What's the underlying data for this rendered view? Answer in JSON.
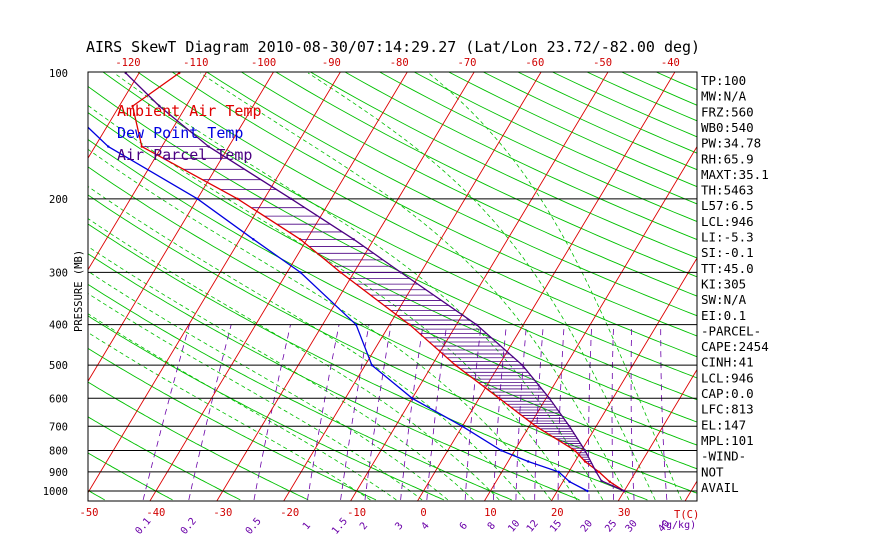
{
  "chart_data": {
    "type": "line",
    "title": "AIRS SkewT Diagram 2010-08-30/07:14:29.27 (Lat/Lon 23.72/-82.00 deg)",
    "ylabel": "PRESSURE (MB)",
    "xlabel": "T(C)",
    "mixing_ratio_label": "(g/kg)",
    "pressure_ticks": [
      100,
      200,
      300,
      400,
      500,
      600,
      700,
      800,
      900,
      1000
    ],
    "bottom_temperature_ticks": [
      -50,
      -40,
      -30,
      -20,
      -10,
      0,
      10,
      20,
      30
    ],
    "top_temperature_ticks": [
      -120,
      -110,
      -100,
      -90,
      -80,
      -70,
      -60,
      -50,
      -40
    ],
    "mixing_ratio_ticks": [
      "0.1",
      "0.2",
      "0.5",
      "1",
      "1.5",
      "2",
      "3",
      "4",
      "6",
      "8",
      "10",
      "12",
      "15",
      "20",
      "25",
      "30",
      "40"
    ],
    "series": [
      {
        "name": "Ambient Air Temp",
        "color": "#e00000",
        "pressure": [
          1000,
          950,
          900,
          850,
          800,
          700,
          600,
          500,
          400,
          300,
          250,
          200,
          150,
          120,
          100
        ],
        "values": [
          30,
          27,
          24.5,
          21.5,
          19,
          11,
          3,
          -6.5,
          -17,
          -32,
          -41,
          -54,
          -73,
          -78,
          -74
        ]
      },
      {
        "name": "Dew Point Temp",
        "color": "#0000e0",
        "pressure": [
          1000,
          950,
          900,
          850,
          800,
          700,
          600,
          500,
          400,
          300,
          250,
          200,
          150,
          120,
          100
        ],
        "values": [
          24.5,
          21,
          18.5,
          13,
          8,
          0,
          -10,
          -19,
          -25,
          -38,
          -48,
          -60,
          -78,
          -88,
          -90
        ]
      },
      {
        "name": "Air Parcel Temp",
        "color": "#4b0082",
        "pressure": [
          1000,
          946,
          900,
          800,
          700,
          600,
          500,
          400,
          300,
          250,
          200,
          150,
          120,
          100
        ],
        "values": [
          30,
          25.7,
          24.1,
          20.5,
          16,
          10.5,
          3.5,
          -7,
          -23,
          -33,
          -46,
          -63,
          -74,
          -82
        ]
      }
    ],
    "indices": [
      "TP:100",
      "MW:N/A",
      "FRZ:560",
      "WB0:540",
      "PW:34.78",
      "RH:65.9",
      "MAXT:35.1",
      "TH:5463",
      "L57:6.5",
      "LCL:946",
      "LI:-5.3",
      "SI:-0.1",
      "TT:45.0",
      "KI:305",
      "SW:N/A",
      "EI:0.1",
      "-PARCEL-",
      "CAPE:2454",
      "CINH:41",
      "LCL:946",
      "CAP:0.0",
      "LFC:813",
      "EL:147",
      "MPL:101",
      "-WIND-",
      "NOT",
      "AVAIL"
    ],
    "colors": {
      "temperature_isotherm": "#dd0000",
      "dry_adiabat": "#00c000",
      "moist_adiabat": "#00c000",
      "mixing_ratio": "#6a00a8",
      "grid": "#000000"
    }
  }
}
